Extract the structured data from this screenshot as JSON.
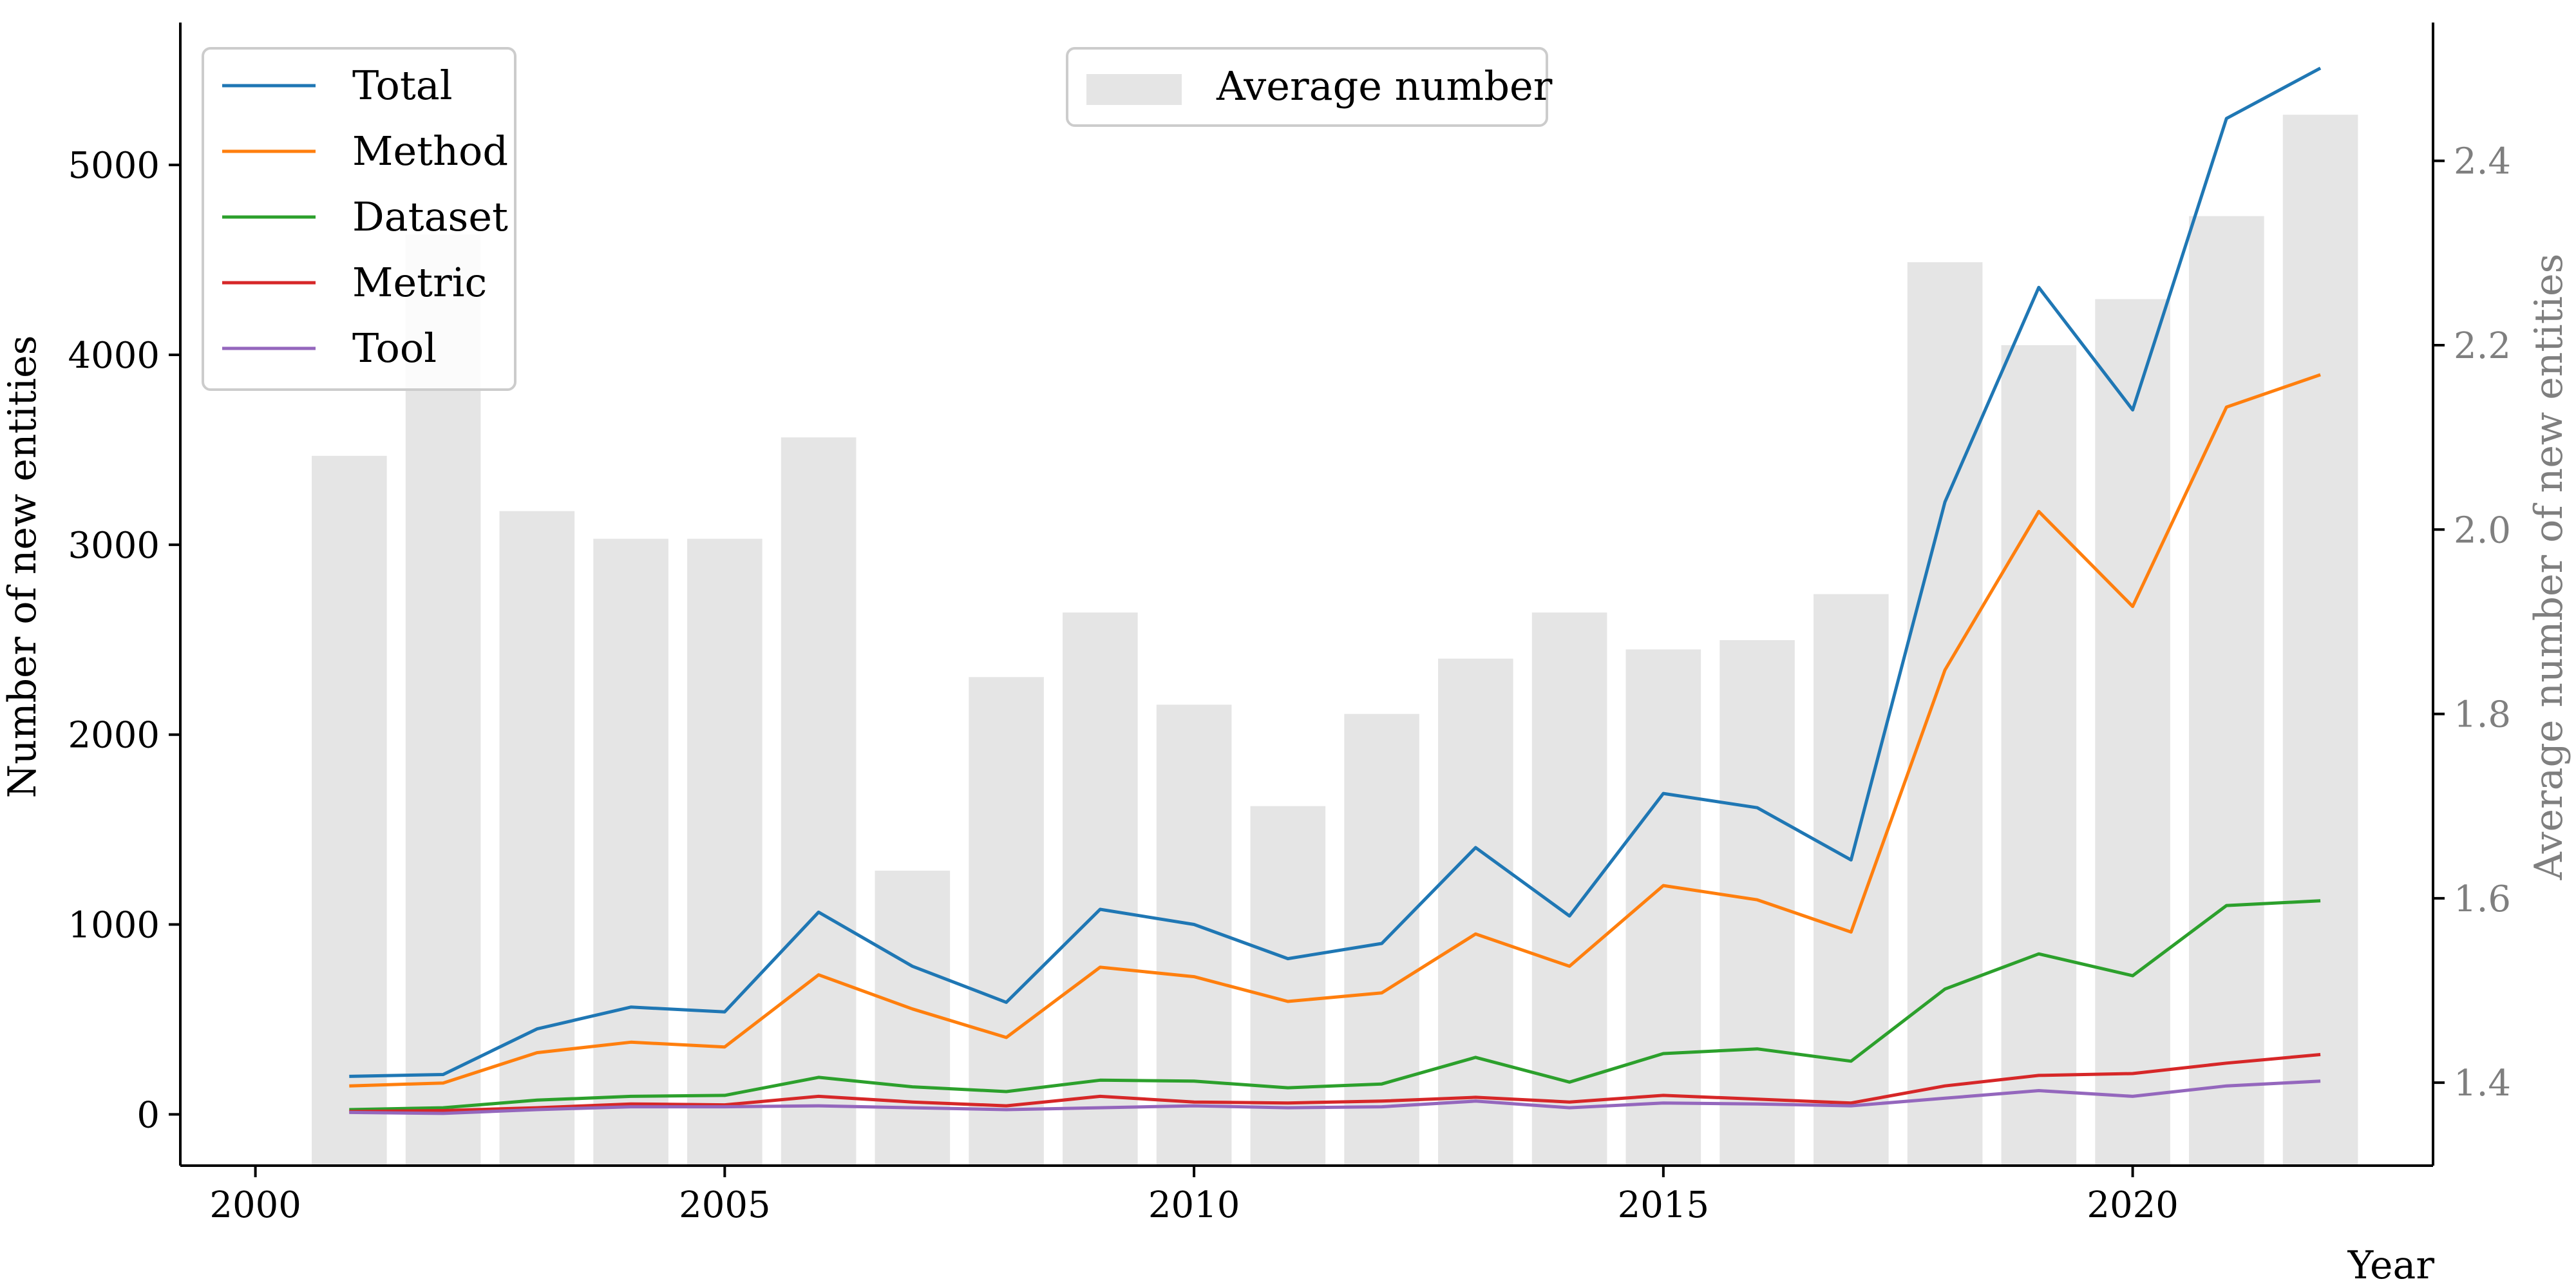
{
  "chart_data": {
    "type": "line",
    "xlabel": "Year",
    "ylabel": "Number of new entities",
    "y2label": "Average number of new entities",
    "xlim": [
      1999.2,
      2023.2
    ],
    "ylim": [
      -270,
      5750
    ],
    "y2lim": [
      1.31,
      2.55
    ],
    "xticks": [
      2000,
      2005,
      2010,
      2015,
      2020
    ],
    "yticks": [
      0,
      1000,
      2000,
      3000,
      4000,
      5000
    ],
    "y2ticks": [
      1.4,
      1.6,
      1.8,
      2.0,
      2.2,
      2.4
    ],
    "x": [
      2001,
      2002,
      2003,
      2004,
      2005,
      2006,
      2007,
      2008,
      2009,
      2010,
      2011,
      2012,
      2013,
      2014,
      2015,
      2016,
      2017,
      2018,
      2019,
      2020,
      2021,
      2022
    ],
    "series": [
      {
        "name": "Total",
        "color": "#1f77b4",
        "values": [
          200,
          210,
          450,
          565,
          540,
          1065,
          780,
          590,
          1080,
          1000,
          820,
          900,
          1405,
          1045,
          1690,
          1615,
          1340,
          3225,
          4355,
          3710,
          5245,
          5510
        ]
      },
      {
        "name": "Method",
        "color": "#ff7f0e",
        "values": [
          150,
          165,
          325,
          380,
          355,
          735,
          555,
          405,
          775,
          725,
          595,
          640,
          950,
          780,
          1205,
          1130,
          960,
          2340,
          3175,
          2675,
          3725,
          3895
        ]
      },
      {
        "name": "Dataset",
        "color": "#2ca02c",
        "values": [
          25,
          35,
          75,
          95,
          100,
          195,
          145,
          120,
          180,
          175,
          140,
          160,
          300,
          170,
          320,
          345,
          280,
          660,
          845,
          730,
          1100,
          1125
        ]
      },
      {
        "name": "Metric",
        "color": "#d62728",
        "values": [
          15,
          20,
          35,
          55,
          50,
          95,
          65,
          45,
          95,
          65,
          60,
          70,
          90,
          65,
          100,
          80,
          60,
          150,
          205,
          215,
          270,
          315
        ]
      },
      {
        "name": "Tool",
        "color": "#9467bd",
        "values": [
          10,
          5,
          25,
          40,
          40,
          45,
          35,
          25,
          35,
          45,
          35,
          40,
          70,
          35,
          60,
          55,
          45,
          85,
          125,
          95,
          150,
          175
        ]
      }
    ],
    "bars": {
      "name": "Average number",
      "color": "#e5e5e5",
      "values": [
        2.08,
        2.32,
        2.02,
        1.99,
        1.99,
        2.1,
        1.63,
        1.84,
        1.91,
        1.81,
        1.7,
        1.8,
        1.86,
        1.91,
        1.87,
        1.88,
        1.93,
        2.29,
        2.2,
        2.25,
        2.34,
        2.45
      ]
    },
    "legend_lines_position": "upper-left",
    "legend_bars_position": "upper-center",
    "grid": false
  }
}
